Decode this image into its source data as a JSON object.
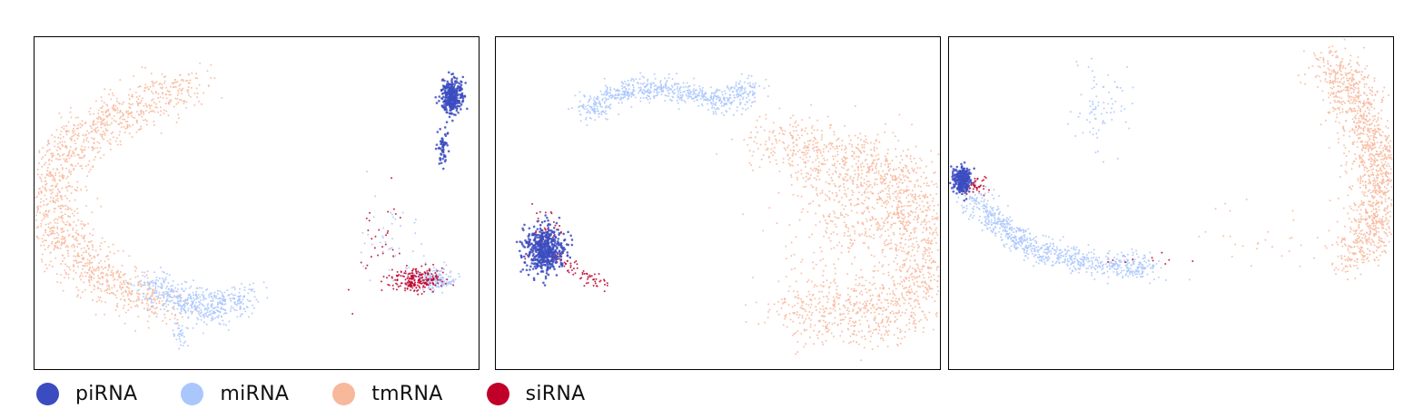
{
  "chart_data": [
    {
      "type": "scatter",
      "panel": 1,
      "title": "",
      "xlabel": "",
      "ylabel": "",
      "axes_ticks": false,
      "grid": false,
      "series": [
        {
          "name": "piRNA",
          "color": "#3b4cc0",
          "clusters": [
            {
              "cx": 0.94,
              "cy": 0.82,
              "rx": 0.02,
              "ry": 0.045,
              "n": 320
            },
            {
              "cx": 0.92,
              "cy": 0.67,
              "rx": 0.01,
              "ry": 0.05,
              "n": 60
            }
          ]
        },
        {
          "name": "miRNA",
          "color": "#aac7fd",
          "trail": {
            "points": [
              [
                0.26,
                0.26
              ],
              [
                0.33,
                0.2
              ],
              [
                0.39,
                0.18
              ],
              [
                0.45,
                0.2
              ],
              [
                0.48,
                0.22
              ]
            ],
            "n": 520,
            "spread": 0.025
          },
          "clusters": [
            {
              "cx": 0.9,
              "cy": 0.27,
              "rx": 0.04,
              "ry": 0.03,
              "n": 180
            },
            {
              "cx": 0.33,
              "cy": 0.1,
              "rx": 0.015,
              "ry": 0.03,
              "n": 30
            },
            {
              "cx": 0.8,
              "cy": 0.38,
              "rx": 0.06,
              "ry": 0.1,
              "n": 40
            }
          ]
        },
        {
          "name": "tmRNA",
          "color": "#f7b89c",
          "trail": {
            "points": [
              [
                0.35,
                0.86
              ],
              [
                0.25,
                0.8
              ],
              [
                0.12,
                0.72
              ],
              [
                0.05,
                0.6
              ],
              [
                0.04,
                0.46
              ],
              [
                0.08,
                0.36
              ],
              [
                0.15,
                0.28
              ],
              [
                0.23,
                0.22
              ],
              [
                0.3,
                0.18
              ]
            ],
            "n": 1400,
            "spread": 0.035
          },
          "clusters": []
        },
        {
          "name": "siRNA",
          "color": "#c00028",
          "clusters": [
            {
              "cx": 0.86,
              "cy": 0.27,
              "rx": 0.05,
              "ry": 0.03,
              "n": 220
            },
            {
              "cx": 0.78,
              "cy": 0.38,
              "rx": 0.05,
              "ry": 0.12,
              "n": 30
            }
          ]
        }
      ]
    },
    {
      "type": "scatter",
      "panel": 2,
      "title": "",
      "xlabel": "",
      "ylabel": "",
      "axes_ticks": false,
      "grid": false,
      "series": [
        {
          "name": "piRNA",
          "color": "#3b4cc0",
          "clusters": [
            {
              "cx": 0.11,
              "cy": 0.36,
              "rx": 0.035,
              "ry": 0.06,
              "n": 520
            }
          ]
        },
        {
          "name": "miRNA",
          "color": "#aac7fd",
          "trail": {
            "points": [
              [
                0.2,
                0.77
              ],
              [
                0.27,
                0.83
              ],
              [
                0.35,
                0.85
              ],
              [
                0.44,
                0.83
              ],
              [
                0.52,
                0.8
              ],
              [
                0.58,
                0.86
              ]
            ],
            "n": 700,
            "spread": 0.018
          },
          "clusters": []
        },
        {
          "name": "tmRNA",
          "color": "#f7b89c",
          "trail": {
            "points": [
              [
                0.62,
                0.7
              ],
              [
                0.72,
                0.64
              ],
              [
                0.86,
                0.62
              ],
              [
                0.93,
                0.52
              ],
              [
                0.94,
                0.4
              ],
              [
                0.98,
                0.33
              ],
              [
                0.95,
                0.23
              ],
              [
                0.85,
                0.15
              ],
              [
                0.7,
                0.18
              ],
              [
                0.66,
                0.22
              ]
            ],
            "n": 1700,
            "spread": 0.05
          },
          "clusters": [
            {
              "cx": 0.8,
              "cy": 0.45,
              "rx": 0.12,
              "ry": 0.15,
              "n": 300
            }
          ]
        },
        {
          "name": "siRNA",
          "color": "#c00028",
          "trail": {
            "points": [
              [
                0.13,
                0.35
              ],
              [
                0.18,
                0.3
              ],
              [
                0.25,
                0.25
              ]
            ],
            "n": 70,
            "spread": 0.01
          },
          "clusters": [
            {
              "cx": 0.11,
              "cy": 0.4,
              "rx": 0.03,
              "ry": 0.07,
              "n": 60
            }
          ]
        }
      ]
    },
    {
      "type": "scatter",
      "panel": 3,
      "title": "",
      "xlabel": "",
      "ylabel": "",
      "axes_ticks": false,
      "grid": false,
      "series": [
        {
          "name": "piRNA",
          "color": "#3b4cc0",
          "clusters": [
            {
              "cx": 0.03,
              "cy": 0.57,
              "rx": 0.018,
              "ry": 0.035,
              "n": 260
            }
          ]
        },
        {
          "name": "miRNA",
          "color": "#aac7fd",
          "trail": {
            "points": [
              [
                0.05,
                0.52
              ],
              [
                0.12,
                0.43
              ],
              [
                0.18,
                0.37
              ],
              [
                0.28,
                0.33
              ],
              [
                0.38,
                0.31
              ],
              [
                0.46,
                0.3
              ]
            ],
            "n": 800,
            "spread": 0.02
          },
          "clusters": [
            {
              "cx": 0.34,
              "cy": 0.8,
              "rx": 0.05,
              "ry": 0.1,
              "n": 80
            }
          ]
        },
        {
          "name": "tmRNA",
          "color": "#f7b89c",
          "trail": {
            "points": [
              [
                0.86,
                0.93
              ],
              [
                0.92,
                0.8
              ],
              [
                0.96,
                0.65
              ],
              [
                0.97,
                0.5
              ],
              [
                0.94,
                0.38
              ],
              [
                0.9,
                0.33
              ]
            ],
            "n": 1300,
            "spread": 0.03
          },
          "clusters": [
            {
              "cx": 0.7,
              "cy": 0.4,
              "rx": 0.15,
              "ry": 0.1,
              "n": 30
            }
          ]
        },
        {
          "name": "siRNA",
          "color": "#c00028",
          "clusters": [
            {
              "cx": 0.06,
              "cy": 0.55,
              "rx": 0.02,
              "ry": 0.025,
              "n": 40
            },
            {
              "cx": 0.45,
              "cy": 0.33,
              "rx": 0.08,
              "ry": 0.02,
              "n": 10
            }
          ]
        }
      ]
    }
  ],
  "legend": {
    "placement": "bottom-left",
    "items": [
      {
        "label": "piRNA",
        "color": "#3b4cc0"
      },
      {
        "label": "miRNA",
        "color": "#aac7fd"
      },
      {
        "label": "tmRNA",
        "color": "#f7b89c"
      },
      {
        "label": "siRNA",
        "color": "#c00028"
      }
    ]
  }
}
